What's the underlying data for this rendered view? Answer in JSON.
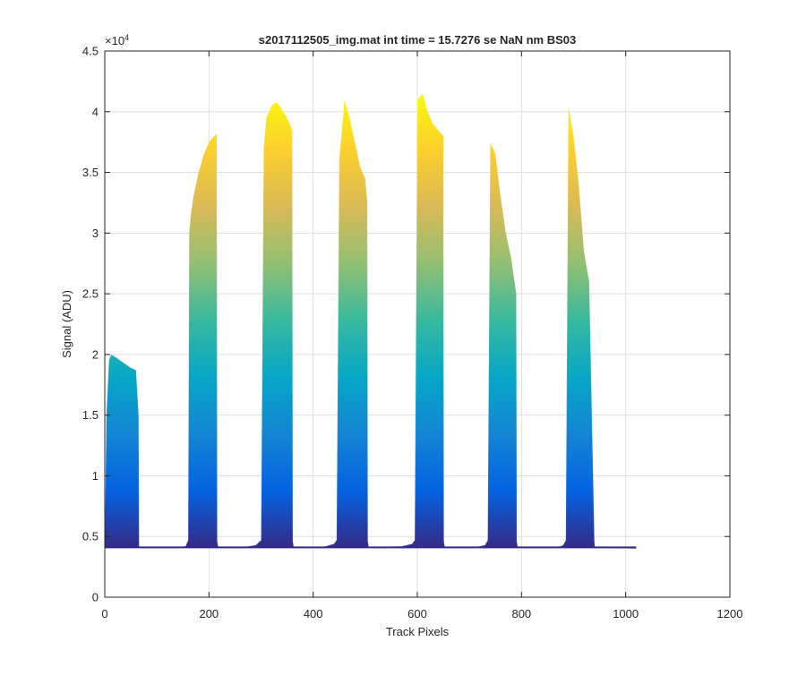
{
  "chart_data": {
    "type": "area",
    "title": "s2017112505_img.mat int time = 15.7276 se  NaN nm BS03",
    "xlabel": "Track Pixels",
    "ylabel": "Signal (ADU)",
    "xlim": [
      0,
      1200
    ],
    "ylim": [
      0,
      45000
    ],
    "xticks": [
      0,
      200,
      400,
      600,
      800,
      1000,
      1200
    ],
    "xtick_labels": [
      "0",
      "200",
      "400",
      "600",
      "800",
      "1000",
      "1200"
    ],
    "yticks": [
      0,
      5000,
      10000,
      15000,
      20000,
      25000,
      30000,
      35000,
      40000,
      45000
    ],
    "ytick_labels": [
      "0",
      "0.5",
      "1",
      "1.5",
      "2",
      "2.5",
      "3",
      "3.5",
      "4",
      "4.5"
    ],
    "y_exponent_label": "×10",
    "y_exponent_power": "4",
    "grid": true,
    "baseline": 4100,
    "colormap": "parula",
    "colormap_stops": [
      "#352a87",
      "#0363e1",
      "#1485d4",
      "#06a7c6",
      "#38b99e",
      "#92bf73",
      "#d9ba56",
      "#fcce2e",
      "#f9fb0e"
    ],
    "envelope": {
      "x": [
        0,
        3,
        8,
        12,
        20,
        30,
        40,
        50,
        60,
        65,
        66,
        68,
        75,
        100,
        130,
        155,
        160,
        162,
        165,
        170,
        180,
        190,
        200,
        210,
        215,
        216,
        218,
        240,
        270,
        290,
        300,
        305,
        310,
        320,
        330,
        340,
        350,
        360,
        361,
        363,
        380,
        420,
        440,
        445,
        450,
        460,
        470,
        480,
        490,
        500,
        504,
        505,
        507,
        530,
        570,
        590,
        595,
        600,
        610,
        620,
        630,
        640,
        650,
        651,
        653,
        680,
        710,
        730,
        735,
        740,
        750,
        760,
        770,
        780,
        790,
        791,
        793,
        830,
        870,
        880,
        885,
        890,
        900,
        910,
        920,
        930,
        940,
        941,
        943,
        980,
        1020
      ],
      "y": [
        4100,
        15000,
        19500,
        20000,
        19800,
        19500,
        19200,
        18900,
        18700,
        15000,
        4100,
        4100,
        4050,
        4100,
        4100,
        4200,
        4700,
        30000,
        31500,
        33000,
        35000,
        36500,
        37500,
        38000,
        38200,
        4600,
        4100,
        4100,
        4150,
        4300,
        4700,
        37000,
        39500,
        40500,
        40800,
        40200,
        39500,
        38500,
        4600,
        4100,
        4100,
        4150,
        4400,
        4700,
        36000,
        41000,
        39500,
        37500,
        35500,
        34500,
        32500,
        4600,
        4100,
        4150,
        4200,
        4400,
        4700,
        41000,
        41500,
        40000,
        39000,
        38500,
        38000,
        4600,
        4100,
        4100,
        4100,
        4300,
        4700,
        37500,
        36500,
        33000,
        30000,
        28000,
        25000,
        4600,
        4100,
        4100,
        4100,
        4300,
        4700,
        40500,
        38000,
        34000,
        28500,
        26000,
        4600,
        4100,
        4100,
        4050,
        4000
      ]
    }
  }
}
